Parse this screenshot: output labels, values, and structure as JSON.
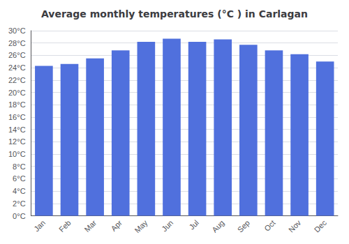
{
  "chart_data": {
    "type": "bar",
    "title": "Average monthly temperatures (°C ) in Carlagan",
    "categories": [
      "Jan",
      "Feb",
      "Mar",
      "Apr",
      "May",
      "Jun",
      "Jul",
      "Aug",
      "Sep",
      "Oct",
      "Nov",
      "Dec"
    ],
    "values": [
      24.3,
      24.6,
      25.5,
      26.8,
      28.2,
      28.7,
      28.2,
      28.6,
      27.7,
      26.8,
      26.2,
      25.0
    ],
    "ylim": [
      0,
      30
    ],
    "yticks": [
      {
        "value": 0,
        "label": "0°C"
      },
      {
        "value": 2,
        "label": "2°C"
      },
      {
        "value": 4,
        "label": "4°C"
      },
      {
        "value": 6,
        "label": "6°C"
      },
      {
        "value": 8,
        "label": "8°C"
      },
      {
        "value": 10,
        "label": "10°C"
      },
      {
        "value": 12,
        "label": "12°C"
      },
      {
        "value": 14,
        "label": "14°C"
      },
      {
        "value": 16,
        "label": "16°C"
      },
      {
        "value": 18,
        "label": "18°C"
      },
      {
        "value": 20,
        "label": "20°C"
      },
      {
        "value": 22,
        "label": "22°C"
      },
      {
        "value": 24,
        "label": "24°C"
      },
      {
        "value": 26,
        "label": "26°C"
      },
      {
        "value": 28,
        "label": "28°C"
      },
      {
        "value": 30,
        "label": "30°C"
      }
    ],
    "grid": true
  }
}
